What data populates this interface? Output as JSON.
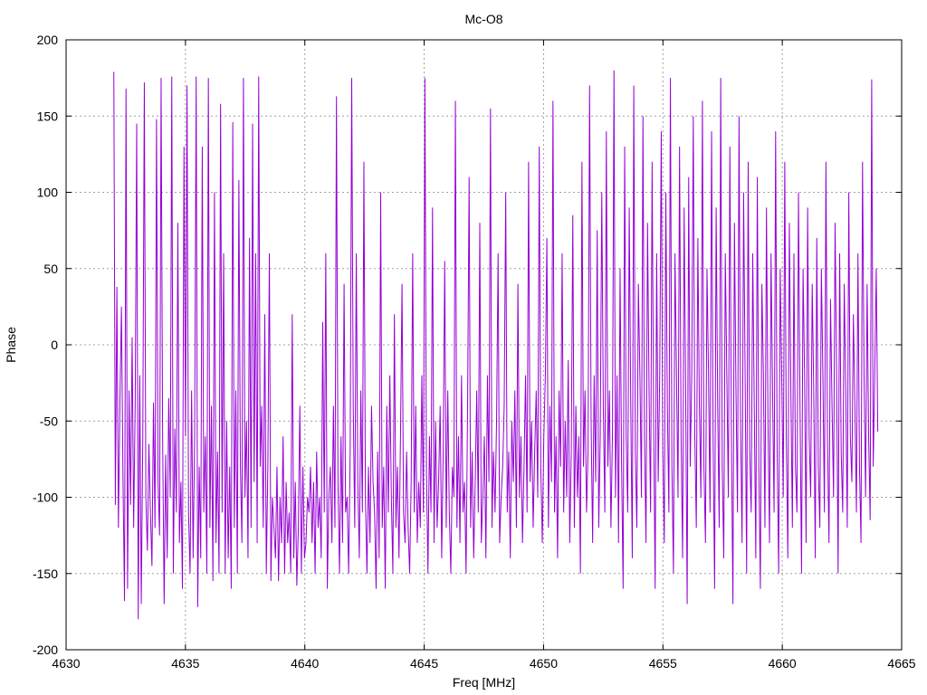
{
  "chart_data": {
    "type": "line",
    "title": "Mc-O8",
    "xlabel": "Freq [MHz]",
    "ylabel": "Phase",
    "xlim": [
      4630,
      4665
    ],
    "ylim": [
      -200,
      200
    ],
    "xticks": [
      4630,
      4635,
      4640,
      4645,
      4650,
      4655,
      4660,
      4665
    ],
    "yticks": [
      -200,
      -150,
      -100,
      -50,
      0,
      50,
      100,
      150,
      200
    ],
    "grid": true,
    "legend": "none",
    "series": [
      {
        "color": "#9400d3",
        "x_start": 4632.0,
        "x_end": 4664.0,
        "values": [
          179,
          -105,
          38,
          -120,
          -37,
          25,
          -88,
          -168,
          168,
          -160,
          -30,
          -105,
          5,
          -120,
          -40,
          145,
          -180,
          -20,
          -170,
          -60,
          172,
          -100,
          -135,
          -65,
          -110,
          -145,
          -38,
          -120,
          148,
          -90,
          -125,
          175,
          -60,
          -170,
          -72,
          -140,
          -35,
          -100,
          176,
          -150,
          -55,
          -110,
          80,
          -130,
          -90,
          -160,
          130,
          -60,
          170,
          -110,
          -150,
          -30,
          -140,
          -60,
          176,
          -172,
          -80,
          -140,
          130,
          -110,
          -60,
          -150,
          175,
          -120,
          -40,
          -155,
          100,
          -130,
          -70,
          -150,
          158,
          -110,
          60,
          -150,
          -50,
          -140,
          -80,
          -160,
          146,
          -120,
          -30,
          -150,
          108,
          -80,
          -130,
          175,
          -100,
          -50,
          -140,
          70,
          -120,
          145,
          -90,
          60,
          -130,
          176,
          -80,
          -40,
          -120,
          20,
          -150,
          -80,
          60,
          -155,
          -100,
          -120,
          -140,
          -80,
          -155,
          -100,
          -130,
          -60,
          -150,
          -90,
          -130,
          -110,
          -150,
          20,
          -140,
          -90,
          -158,
          -120,
          -40,
          -150,
          -80,
          -140,
          -130,
          -100,
          -110,
          -80,
          -130,
          -90,
          -150,
          -70,
          -120,
          -100,
          -140,
          15,
          -110,
          60,
          -160,
          -100,
          -80,
          -130,
          -40,
          -120,
          163,
          -90,
          -150,
          -60,
          -130,
          40,
          -110,
          -100,
          -150,
          -70,
          175,
          -40,
          -120,
          60,
          -90,
          -140,
          -30,
          -110,
          120,
          -100,
          -150,
          -80,
          -130,
          -40,
          -90,
          -110,
          -160,
          -70,
          -140,
          100,
          -120,
          -80,
          -160,
          -40,
          -110,
          -20,
          -100,
          -150,
          20,
          -120,
          -80,
          -140,
          -60,
          40,
          -110,
          -130,
          -70,
          -120,
          -150,
          -90,
          60,
          -110,
          -40,
          -130,
          -90,
          -120,
          -20,
          -110,
          175,
          -80,
          -150,
          -60,
          -110,
          90,
          -130,
          -50,
          -120,
          -90,
          -40,
          -140,
          -70,
          55,
          -120,
          -30,
          -110,
          -150,
          -80,
          -100,
          160,
          -120,
          -60,
          -130,
          -20,
          -110,
          -90,
          -150,
          -40,
          110,
          -120,
          -70,
          -140,
          -90,
          -30,
          -110,
          80,
          -130,
          -100,
          -60,
          -140,
          -20,
          -90,
          155,
          -120,
          -70,
          -110,
          -50,
          60,
          -130,
          -100,
          -80,
          -40,
          100,
          -110,
          -70,
          -140,
          -50,
          -90,
          -30,
          -120,
          40,
          -100,
          -60,
          -130,
          -80,
          -20,
          -110,
          120,
          -90,
          -50,
          -120,
          -70,
          -30,
          -100,
          130,
          -80,
          -130,
          -60,
          -20,
          70,
          -120,
          -40,
          -90,
          160,
          -110,
          -60,
          -140,
          -30,
          -80,
          60,
          -110,
          -50,
          -100,
          -10,
          -130,
          -70,
          85,
          -120,
          -40,
          -100,
          -60,
          -150,
          120,
          -80,
          -30,
          -110,
          -70,
          170,
          -50,
          -130,
          -20,
          -90,
          75,
          -120,
          -60,
          100,
          -40,
          -110,
          140,
          -80,
          -30,
          -120,
          -60,
          180,
          -100,
          -20,
          -130,
          50,
          -80,
          -160,
          130,
          -60,
          -110,
          90,
          -40,
          -140,
          170,
          -70,
          -120,
          40,
          -20,
          -100,
          150,
          -60,
          -130,
          80,
          -30,
          -110,
          120,
          -50,
          -160,
          60,
          -90,
          -20,
          140,
          -70,
          -130,
          100,
          -40,
          -110,
          175,
          -80,
          -150,
          60,
          -20,
          -100,
          130,
          -60,
          -140,
          90,
          -30,
          -170,
          110,
          -80,
          -20,
          150,
          -60,
          -120,
          70,
          -40,
          -100,
          160,
          -80,
          -130,
          50,
          -20,
          -110,
          140,
          -60,
          -160,
          90,
          -40,
          -120,
          175,
          -80,
          -140,
          60,
          -20,
          -100,
          130,
          -60,
          -170,
          80,
          -30,
          -110,
          150,
          -50,
          -130,
          100,
          -20,
          -150,
          120,
          -70,
          -110,
          60,
          -40,
          -140,
          110,
          -80,
          -160,
          40,
          -20,
          -120,
          90,
          -50,
          -130,
          60,
          -30,
          -110,
          140,
          -70,
          -150,
          50,
          -20,
          -100,
          120,
          -60,
          -140,
          80,
          -30,
          -120,
          60,
          -80,
          -110,
          100,
          -40,
          -150,
          50,
          -20,
          -130,
          90,
          -60,
          -100,
          40,
          -30,
          -140,
          70,
          -80,
          -120,
          50,
          -20,
          -110,
          120,
          -60,
          -130,
          30,
          -40,
          -100,
          80,
          -20,
          -150,
          60,
          -70,
          -110,
          40,
          -30,
          -120,
          100,
          -60,
          -90,
          20,
          -40,
          -110,
          60,
          -80,
          -130,
          120,
          -20,
          -100,
          40,
          -60,
          -115,
          174,
          -80,
          -20,
          50,
          -57
        ]
      }
    ]
  }
}
